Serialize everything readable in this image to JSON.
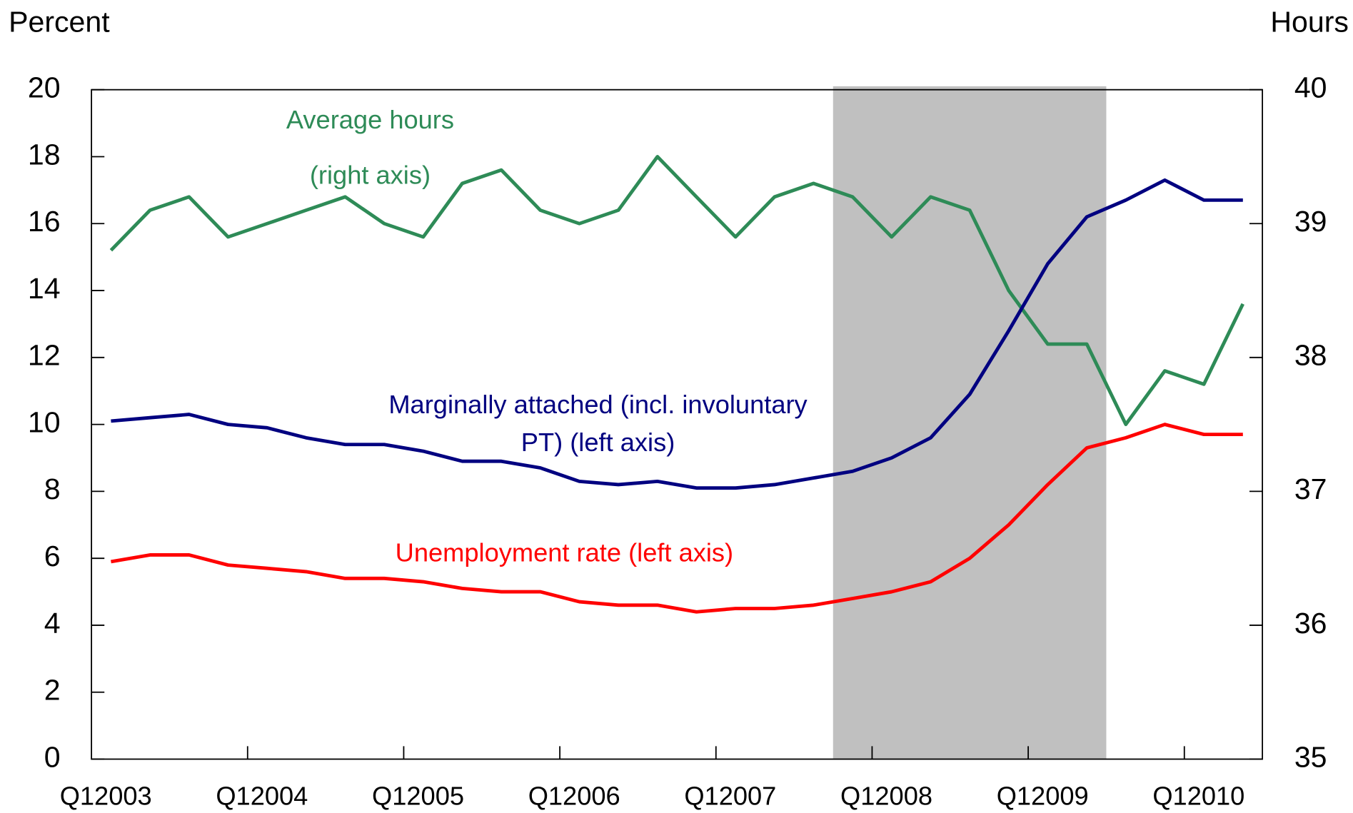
{
  "chart_data": {
    "type": "line",
    "y_label": "Percent",
    "y2_label": "Hours",
    "categories": [
      "Q12003",
      null,
      null,
      null,
      "Q12004",
      null,
      null,
      null,
      "Q12005",
      null,
      null,
      null,
      "Q12006",
      null,
      null,
      null,
      "Q12007",
      null,
      null,
      null,
      "Q12008",
      null,
      null,
      null,
      "Q12009",
      null,
      null,
      null,
      "Q12010",
      null
    ],
    "ylim": [
      0,
      20
    ],
    "yticks": [
      0,
      2,
      4,
      6,
      8,
      10,
      12,
      14,
      16,
      18,
      20
    ],
    "y2lim": [
      35,
      40
    ],
    "y2ticks": [
      35,
      36,
      37,
      38,
      39,
      40
    ],
    "grid": false,
    "shade": {
      "color": "#c0c0c0",
      "x": [
        18.5,
        25.5
      ]
    },
    "series": [
      {
        "name": "Average hours",
        "name_line2": "(right axis)",
        "color": "#2e8b57",
        "axis": "y2",
        "values": [
          38.8,
          39.1,
          39.2,
          38.9,
          39.0,
          39.1,
          39.2,
          39.0,
          38.9,
          39.3,
          39.4,
          39.1,
          39.0,
          39.1,
          39.5,
          39.2,
          38.9,
          39.2,
          39.3,
          39.2,
          38.9,
          39.2,
          39.1,
          38.5,
          38.1,
          38.1,
          37.5,
          37.9,
          37.8,
          38.4
        ]
      },
      {
        "name": "Marginally attached (incl. involuntary",
        "name_line2": "PT) (left axis)",
        "color": "#000080",
        "values": [
          10.1,
          10.2,
          10.3,
          10.0,
          9.9,
          9.6,
          9.4,
          9.4,
          9.2,
          8.9,
          8.9,
          8.7,
          8.3,
          8.2,
          8.3,
          8.1,
          8.1,
          8.2,
          8.4,
          8.6,
          9.0,
          9.6,
          10.9,
          12.8,
          14.8,
          16.2,
          16.7,
          17.3,
          16.7,
          16.7
        ]
      },
      {
        "name": "Unemployment rate (left axis)",
        "color": "#ff0000",
        "values": [
          5.9,
          6.1,
          6.1,
          5.8,
          5.7,
          5.6,
          5.4,
          5.4,
          5.3,
          5.1,
          5.0,
          5.0,
          4.7,
          4.6,
          4.6,
          4.4,
          4.5,
          4.5,
          4.6,
          4.8,
          5.0,
          5.3,
          6.0,
          7.0,
          8.2,
          9.3,
          9.6,
          10.0,
          9.7,
          9.7
        ]
      }
    ]
  }
}
